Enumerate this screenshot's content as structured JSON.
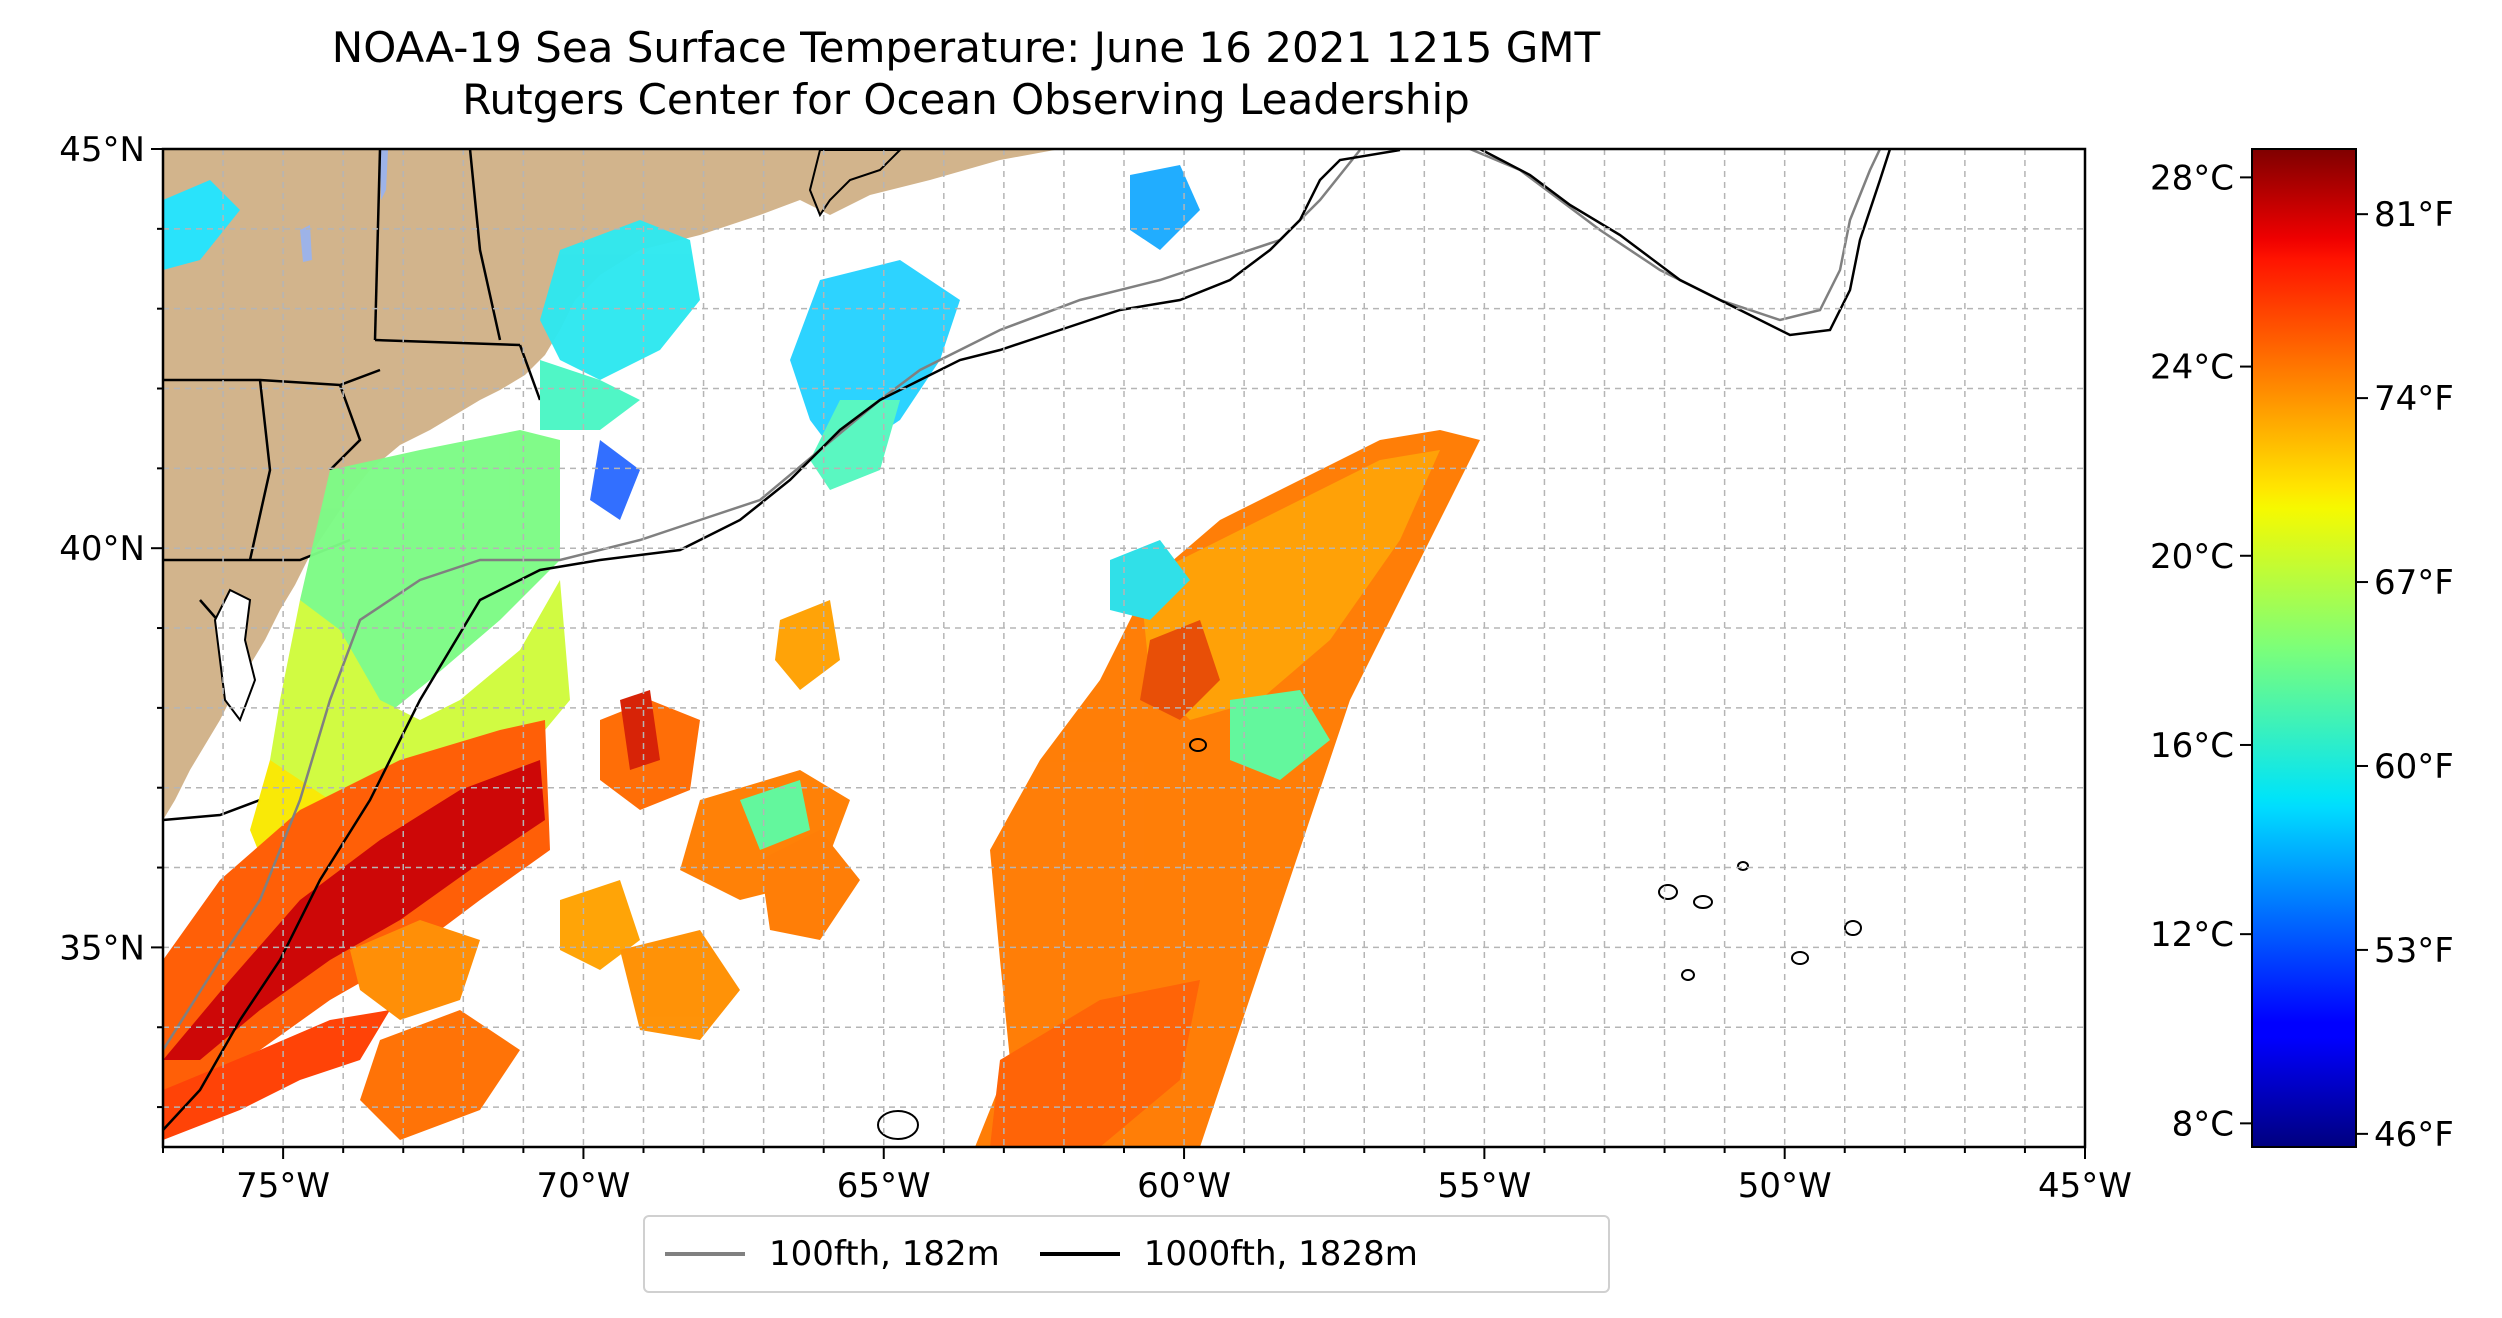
{
  "title": {
    "line1": "NOAA-19 Sea Surface Temperature: June 16 2021 1215 GMT",
    "line2": "Rutgers Center for Ocean Observing Leadership"
  },
  "map": {
    "lon_range": [
      -77,
      -45
    ],
    "lat_range": [
      32.5,
      45
    ],
    "lon_ticks": [
      {
        "value": -75,
        "label": "75°W"
      },
      {
        "value": -70,
        "label": "70°W"
      },
      {
        "value": -65,
        "label": "65°W"
      },
      {
        "value": -60,
        "label": "60°W"
      },
      {
        "value": -55,
        "label": "55°W"
      },
      {
        "value": -50,
        "label": "50°W"
      },
      {
        "value": -45,
        "label": "45°W"
      }
    ],
    "lat_ticks": [
      {
        "value": 45,
        "label": "45°N"
      },
      {
        "value": 40,
        "label": "40°N"
      },
      {
        "value": 35,
        "label": "35°N"
      }
    ],
    "gridlines": true,
    "land_color": "#d2b48c"
  },
  "colorbar": {
    "colormap": "jet",
    "celsius_ticks": [
      {
        "value": 28,
        "label": "28°C"
      },
      {
        "value": 24,
        "label": "24°C"
      },
      {
        "value": 20,
        "label": "20°C"
      },
      {
        "value": 16,
        "label": "16°C"
      },
      {
        "value": 12,
        "label": "12°C"
      },
      {
        "value": 8,
        "label": "8°C"
      }
    ],
    "fahrenheit_ticks": [
      {
        "value": 81,
        "label": "81°F"
      },
      {
        "value": 74,
        "label": "74°F"
      },
      {
        "value": 67,
        "label": "67°F"
      },
      {
        "value": 60,
        "label": "60°F"
      },
      {
        "value": 53,
        "label": "53°F"
      },
      {
        "value": 46,
        "label": "46°F"
      }
    ]
  },
  "legend": {
    "items": [
      {
        "label": "100fth, 182m",
        "color": "#808080"
      },
      {
        "label": "1000fth, 1828m",
        "color": "#000000"
      }
    ]
  }
}
